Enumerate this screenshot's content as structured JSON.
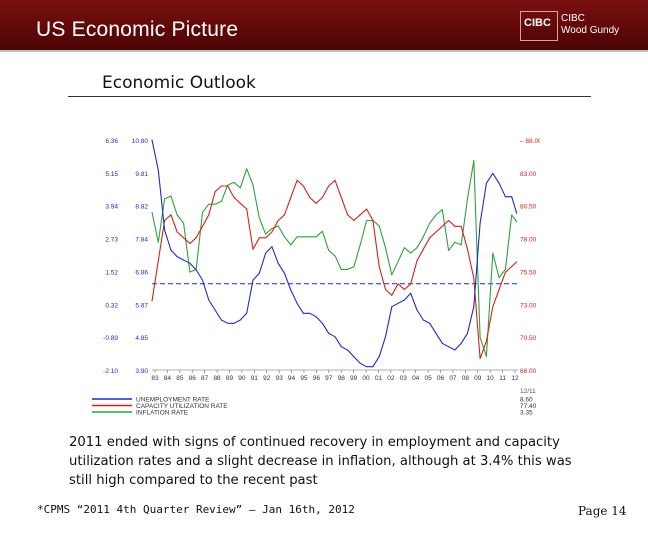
{
  "header": {
    "title": "US Economic Picture",
    "logo_line1": "CIBC",
    "logo_line2": "CIBC",
    "logo_line3": "Wood Gundy"
  },
  "slide": {
    "subtitle": "Economic Outlook",
    "caption": "2011 ended with signs of continued recovery in employment and capacity utilization rates and a slight decrease in inflation, although at 3.4% this was still high compared to the recent past",
    "source": "*CPMS “2011 4th Quarter Review” – Jan 16th, 2012",
    "page": "Page 14"
  },
  "colors": {
    "header_bg": "#7a1010",
    "unemployment": "#1f2cc4",
    "capacity": "#d0241b",
    "inflation": "#2ea23a",
    "left_axis_text": "#1f2cc4",
    "right_axis_text": "#d0241b",
    "reference_line": "#1f2cc4"
  },
  "chart_data": {
    "type": "line",
    "x_ticks": [
      "83",
      "84",
      "85",
      "86",
      "87",
      "88",
      "89",
      "90",
      "91",
      "92",
      "93",
      "94",
      "95",
      "96",
      "97",
      "98",
      "99",
      "00",
      "01",
      "02",
      "03",
      "04",
      "05",
      "06",
      "07",
      "08",
      "09",
      "10",
      "11",
      "12"
    ],
    "y_left_inflation_ticks": [
      "6.36",
      "5.15",
      "3.94",
      "2.73",
      "1.52",
      "0.32",
      "-0.89",
      "-2.10"
    ],
    "y_left_unemployment_ticks": [
      "10.80",
      "9.81",
      "8.82",
      "7.84",
      "6.86",
      "5.87",
      "4.85",
      "3.90"
    ],
    "y_right_ticks": [
      "88.00",
      "83.00",
      "80.50",
      "78.00",
      "75.50",
      "73.00",
      "70.50",
      "68.00"
    ],
    "ylim_unemployment": [
      3.9,
      10.8
    ],
    "ylim_capacity": [
      68.0,
      88.0
    ],
    "ylim_inflation": [
      -2.1,
      6.36
    ],
    "xlim": [
      1983,
      2012
    ],
    "reference_line_capacity": 75.5,
    "legend_position": "bottom-left",
    "legend_header": "12/11",
    "series": [
      {
        "name": "UNEMPLOYMENT RATE",
        "latest": "8.60",
        "x": [
          1983,
          1983.5,
          1984,
          1984.5,
          1985,
          1985.5,
          1986,
          1986.5,
          1987,
          1987.5,
          1988,
          1988.5,
          1989,
          1989.5,
          1990,
          1990.5,
          1991,
          1991.5,
          1992,
          1992.5,
          1993,
          1993.5,
          1994,
          1994.5,
          1995,
          1995.5,
          1996,
          1996.5,
          1997,
          1997.5,
          1998,
          1998.5,
          1999,
          1999.5,
          2000,
          2000.5,
          2001,
          2001.5,
          2002,
          2002.5,
          2003,
          2003.5,
          2004,
          2004.5,
          2005,
          2005.5,
          2006,
          2006.5,
          2007,
          2007.5,
          2008,
          2008.5,
          2009,
          2009.5,
          2010,
          2010.5,
          2011,
          2011.5,
          2011.9
        ],
        "values": [
          10.8,
          9.9,
          8.1,
          7.5,
          7.3,
          7.2,
          7.1,
          6.9,
          6.6,
          6.0,
          5.7,
          5.4,
          5.3,
          5.3,
          5.4,
          5.6,
          6.6,
          6.8,
          7.4,
          7.6,
          7.1,
          6.8,
          6.3,
          5.9,
          5.6,
          5.6,
          5.5,
          5.3,
          5.0,
          4.9,
          4.6,
          4.5,
          4.3,
          4.1,
          4.0,
          4.0,
          4.3,
          4.9,
          5.8,
          5.9,
          6.0,
          6.2,
          5.7,
          5.4,
          5.3,
          5.0,
          4.7,
          4.6,
          4.5,
          4.7,
          5.0,
          5.8,
          8.3,
          9.5,
          9.8,
          9.5,
          9.1,
          9.1,
          8.6
        ]
      },
      {
        "name": "CAPACITY UTILIZATION RATE",
        "latest": "77.40",
        "x": [
          1983,
          1983.5,
          1984,
          1984.5,
          1985,
          1985.5,
          1986,
          1986.5,
          1987,
          1987.5,
          1988,
          1988.5,
          1989,
          1989.5,
          1990,
          1990.5,
          1991,
          1991.5,
          1992,
          1992.5,
          1993,
          1993.5,
          1994,
          1994.5,
          1995,
          1995.5,
          1996,
          1996.5,
          1997,
          1997.5,
          1998,
          1998.5,
          1999,
          1999.5,
          2000,
          2000.5,
          2001,
          2001.5,
          2002,
          2002.5,
          2003,
          2003.5,
          2004,
          2004.5,
          2005,
          2005.5,
          2006,
          2006.5,
          2007,
          2007.5,
          2008,
          2008.5,
          2009,
          2009.5,
          2010,
          2010.5,
          2011,
          2011.5,
          2011.9
        ],
        "values": [
          74.0,
          77.5,
          81.0,
          81.5,
          80.0,
          79.5,
          79.0,
          79.5,
          80.5,
          81.5,
          83.5,
          84.0,
          84.0,
          83.0,
          82.5,
          82.0,
          78.5,
          79.5,
          79.5,
          80.0,
          81.0,
          81.5,
          83.0,
          84.5,
          84.0,
          83.0,
          82.5,
          83.0,
          84.0,
          84.5,
          83.0,
          81.5,
          81.0,
          81.5,
          82.0,
          81.0,
          77.0,
          75.0,
          74.5,
          75.5,
          75.0,
          75.5,
          77.5,
          78.5,
          79.5,
          80.0,
          80.5,
          81.0,
          80.5,
          80.5,
          78.5,
          76.0,
          69.0,
          70.5,
          73.5,
          75.0,
          76.5,
          77.0,
          77.4
        ]
      },
      {
        "name": "INFLATION RATE",
        "latest": "3.35",
        "x": [
          1983,
          1983.5,
          1984,
          1984.5,
          1985,
          1985.5,
          1986,
          1986.5,
          1987,
          1987.5,
          1988,
          1988.5,
          1989,
          1989.5,
          1990,
          1990.5,
          1991,
          1991.5,
          1992,
          1992.5,
          1993,
          1993.5,
          1994,
          1994.5,
          1995,
          1995.5,
          1996,
          1996.5,
          1997,
          1997.5,
          1998,
          1998.5,
          1999,
          1999.5,
          2000,
          2000.5,
          2001,
          2001.5,
          2002,
          2002.5,
          2003,
          2003.5,
          2004,
          2004.5,
          2005,
          2005.5,
          2006,
          2006.5,
          2007,
          2007.5,
          2008,
          2008.5,
          2009,
          2009.5,
          2010,
          2010.5,
          2011,
          2011.5,
          2011.9
        ],
        "values": [
          3.7,
          2.6,
          4.2,
          4.3,
          3.6,
          3.3,
          1.5,
          1.6,
          3.7,
          4.0,
          4.0,
          4.1,
          4.7,
          4.8,
          4.6,
          5.3,
          4.7,
          3.5,
          2.9,
          3.1,
          3.2,
          2.8,
          2.5,
          2.8,
          2.8,
          2.8,
          2.8,
          3.0,
          2.3,
          2.1,
          1.6,
          1.6,
          1.7,
          2.5,
          3.4,
          3.4,
          3.2,
          2.4,
          1.4,
          1.9,
          2.4,
          2.2,
          2.4,
          2.8,
          3.3,
          3.6,
          3.8,
          2.3,
          2.6,
          2.5,
          4.2,
          5.6,
          -0.9,
          -1.6,
          2.2,
          1.3,
          1.6,
          3.6,
          3.35
        ]
      }
    ]
  }
}
